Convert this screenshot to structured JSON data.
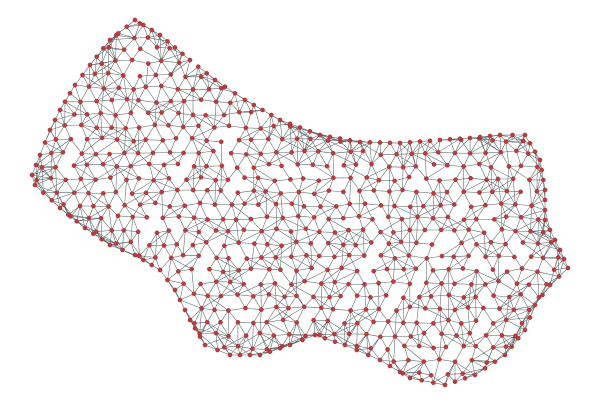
{
  "graph": {
    "type": "mesh-network",
    "description_visible_text": "",
    "style": {
      "background": "#ffffff",
      "edge_color": "#3f4a50",
      "node_fill": "#c0393b",
      "node_stroke": "#8a2a2c"
    }
  }
}
